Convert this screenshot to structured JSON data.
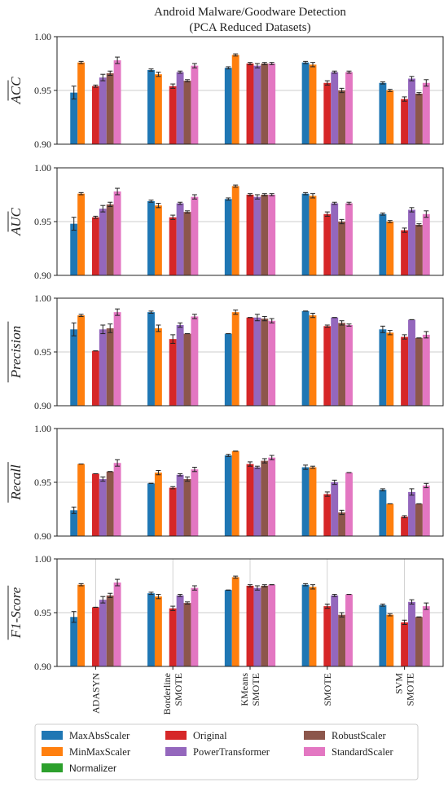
{
  "chart_data": {
    "type": "bar",
    "title_lines": [
      "Android Malware/Goodware Detection",
      "(PCA Reduced Datasets)"
    ],
    "categories": [
      [
        "ADASYN"
      ],
      [
        "Borderline",
        "SMOTE"
      ],
      [
        "KMeans",
        "SMOTE"
      ],
      [
        "SMOTE"
      ],
      [
        "SVM",
        "SMOTE"
      ]
    ],
    "ylim": [
      0.9,
      1.0
    ],
    "yticks": [
      "0.90",
      "0.95",
      "1.00"
    ],
    "grid": "horizontal",
    "legend_position": "bottom",
    "series": [
      {
        "name": "MaxAbsScaler",
        "color": "#1f77b4"
      },
      {
        "name": "MinMaxScaler",
        "color": "#ff7f0e"
      },
      {
        "name": "Normalizer",
        "color": "#2ca02c"
      },
      {
        "name": "Original",
        "color": "#d62728"
      },
      {
        "name": "PowerTransformer",
        "color": "#9467bd"
      },
      {
        "name": "RobustScaler",
        "color": "#8c564b"
      },
      {
        "name": "StandardScaler",
        "color": "#e377c2"
      }
    ],
    "panels": [
      {
        "ylabel": "ACC",
        "values": [
          [
            0.948,
            0.976,
            null,
            0.954,
            0.962,
            0.966,
            0.978
          ],
          [
            0.969,
            0.965,
            null,
            0.954,
            0.967,
            0.959,
            0.973
          ],
          [
            0.971,
            0.983,
            null,
            0.975,
            0.973,
            0.975,
            0.975
          ],
          [
            0.976,
            0.974,
            null,
            0.957,
            0.967,
            0.95,
            0.967
          ],
          [
            0.957,
            0.95,
            null,
            0.942,
            0.961,
            0.947,
            0.957
          ]
        ],
        "errors": [
          [
            0.006,
            0.001,
            null,
            0.001,
            0.003,
            0.002,
            0.003
          ],
          [
            0.001,
            0.002,
            null,
            0.002,
            0.001,
            0.001,
            0.002
          ],
          [
            0.001,
            0.001,
            null,
            0.001,
            0.002,
            0.001,
            0.001
          ],
          [
            0.001,
            0.002,
            null,
            0.002,
            0.001,
            0.002,
            0.001
          ],
          [
            0.001,
            0.001,
            null,
            0.002,
            0.002,
            0.001,
            0.003
          ]
        ]
      },
      {
        "ylabel": "AUC",
        "values": [
          [
            0.948,
            0.976,
            null,
            0.954,
            0.962,
            0.966,
            0.978
          ],
          [
            0.969,
            0.965,
            null,
            0.954,
            0.967,
            0.959,
            0.973
          ],
          [
            0.971,
            0.983,
            null,
            0.975,
            0.973,
            0.975,
            0.975
          ],
          [
            0.976,
            0.974,
            null,
            0.957,
            0.967,
            0.95,
            0.967
          ],
          [
            0.957,
            0.95,
            null,
            0.942,
            0.961,
            0.947,
            0.957
          ]
        ],
        "errors": [
          [
            0.006,
            0.001,
            null,
            0.001,
            0.003,
            0.002,
            0.003
          ],
          [
            0.001,
            0.002,
            null,
            0.002,
            0.001,
            0.001,
            0.002
          ],
          [
            0.001,
            0.001,
            null,
            0.001,
            0.002,
            0.001,
            0.001
          ],
          [
            0.001,
            0.002,
            null,
            0.002,
            0.001,
            0.002,
            0.001
          ],
          [
            0.001,
            0.001,
            null,
            0.002,
            0.002,
            0.001,
            0.003
          ]
        ]
      },
      {
        "ylabel": "Precision",
        "values": [
          [
            0.971,
            0.984,
            null,
            0.951,
            0.971,
            0.972,
            0.987
          ],
          [
            0.987,
            0.972,
            null,
            0.962,
            0.975,
            0.967,
            0.983
          ],
          [
            0.967,
            0.987,
            null,
            0.982,
            0.982,
            0.981,
            0.979
          ],
          [
            0.988,
            0.984,
            null,
            0.974,
            0.982,
            0.977,
            0.975
          ],
          [
            0.971,
            0.968,
            null,
            0.964,
            0.98,
            0.963,
            0.966
          ]
        ],
        "errors": [
          [
            0.006,
            0.001,
            null,
            0.0,
            0.004,
            0.004,
            0.003
          ],
          [
            0.001,
            0.003,
            null,
            0.004,
            0.002,
            0.0,
            0.002
          ],
          [
            0.0,
            0.002,
            null,
            0.0,
            0.003,
            0.002,
            0.002
          ],
          [
            0.0,
            0.002,
            null,
            0.001,
            0.0,
            0.002,
            0.001
          ],
          [
            0.003,
            0.002,
            null,
            0.002,
            0.0,
            0.0,
            0.003
          ]
        ]
      },
      {
        "ylabel": "Recall",
        "values": [
          [
            0.924,
            0.967,
            null,
            0.958,
            0.953,
            0.96,
            0.968
          ],
          [
            0.949,
            0.959,
            null,
            0.945,
            0.957,
            0.953,
            0.962
          ],
          [
            0.975,
            0.979,
            null,
            0.967,
            0.964,
            0.97,
            0.973
          ],
          [
            0.964,
            0.964,
            null,
            0.939,
            0.95,
            0.922,
            0.959
          ],
          [
            0.943,
            0.93,
            null,
            0.918,
            0.941,
            0.93,
            0.947
          ]
        ],
        "errors": [
          [
            0.003,
            0.0,
            null,
            0.0,
            0.002,
            0.0,
            0.003
          ],
          [
            0.0,
            0.002,
            null,
            0.001,
            0.001,
            0.002,
            0.002
          ],
          [
            0.001,
            0.0,
            null,
            0.002,
            0.001,
            0.002,
            0.002
          ],
          [
            0.002,
            0.001,
            null,
            0.002,
            0.002,
            0.002,
            0.0
          ],
          [
            0.001,
            0.0,
            null,
            0.001,
            0.003,
            0.0,
            0.002
          ]
        ]
      },
      {
        "ylabel": "F1-Score",
        "values": [
          [
            0.946,
            0.976,
            null,
            0.955,
            0.962,
            0.966,
            0.978
          ],
          [
            0.968,
            0.965,
            null,
            0.954,
            0.966,
            0.959,
            0.973
          ],
          [
            0.971,
            0.983,
            null,
            0.975,
            0.973,
            0.975,
            0.976
          ],
          [
            0.976,
            0.974,
            null,
            0.956,
            0.966,
            0.948,
            0.967
          ],
          [
            0.957,
            0.948,
            null,
            0.941,
            0.96,
            0.946,
            0.956
          ]
        ],
        "errors": [
          [
            0.005,
            0.001,
            null,
            0.0,
            0.003,
            0.002,
            0.003
          ],
          [
            0.001,
            0.002,
            null,
            0.002,
            0.001,
            0.001,
            0.002
          ],
          [
            0.0,
            0.001,
            null,
            0.001,
            0.002,
            0.001,
            0.0
          ],
          [
            0.001,
            0.002,
            null,
            0.002,
            0.001,
            0.002,
            0.0
          ],
          [
            0.001,
            0.001,
            null,
            0.002,
            0.002,
            0.0,
            0.003
          ]
        ]
      }
    ]
  }
}
